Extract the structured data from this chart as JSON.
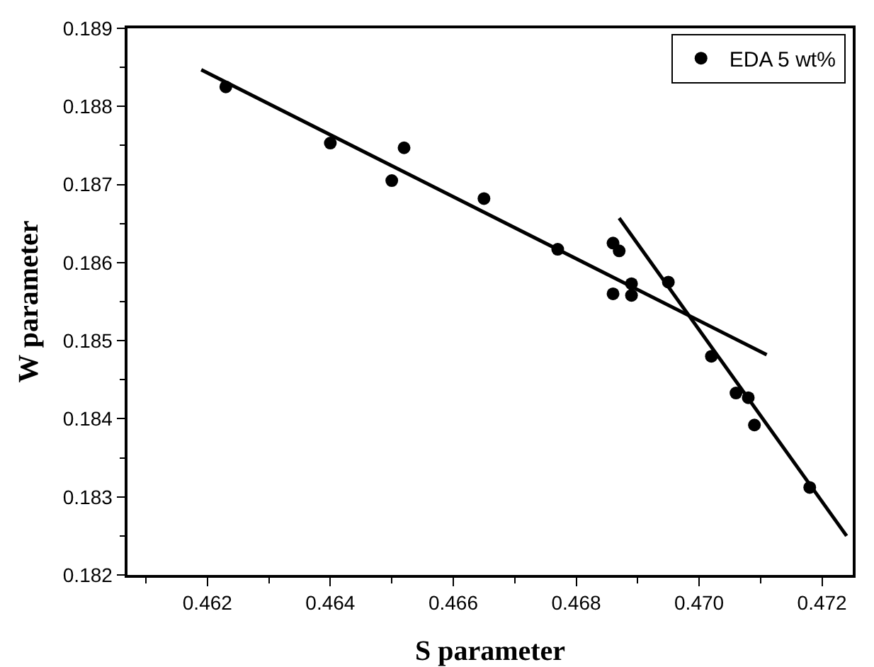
{
  "chart_data": {
    "type": "scatter",
    "xlabel": "S parameter",
    "ylabel": "W parameter",
    "xlim": [
      0.4607,
      0.4725
    ],
    "xticks": [
      {
        "value": 0.462,
        "label": "0.462"
      },
      {
        "value": 0.464,
        "label": "0.464"
      },
      {
        "value": 0.466,
        "label": "0.466"
      },
      {
        "value": 0.468,
        "label": "0.468"
      },
      {
        "value": 0.47,
        "label": "0.470"
      },
      {
        "value": 0.472,
        "label": "0.472"
      }
    ],
    "ylim": [
      0.182,
      0.189
    ],
    "yticks": [
      0.182,
      0.183,
      0.184,
      0.185,
      0.186,
      0.187,
      0.188,
      0.189
    ],
    "grid": false,
    "legend": "top right",
    "series": [
      {
        "name": "EDA 5 wt%",
        "color": "#000000",
        "marker": "circle",
        "x": [
          0.4623,
          0.464,
          0.465,
          0.4652,
          0.4665,
          0.4677,
          0.4686,
          0.4687,
          0.4686,
          0.4689,
          0.4689,
          0.4695,
          0.4702,
          0.4706,
          0.4708,
          0.4709,
          0.4718
        ],
        "values": [
          0.18825,
          0.18753,
          0.18705,
          0.18747,
          0.18682,
          0.18617,
          0.18625,
          0.18615,
          0.1856,
          0.18573,
          0.18558,
          0.18575,
          0.1848,
          0.18433,
          0.18427,
          0.18392,
          0.18312
        ]
      },
      {
        "type": "line",
        "color": "#000000",
        "marker": "none",
        "x": [
          0.4619,
          0.4711
        ],
        "values": [
          0.18847,
          0.18482
        ]
      },
      {
        "type": "line",
        "color": "#000000",
        "marker": "none",
        "x": [
          0.4687,
          0.4724
        ],
        "values": [
          0.18657,
          0.1825
        ]
      }
    ]
  }
}
